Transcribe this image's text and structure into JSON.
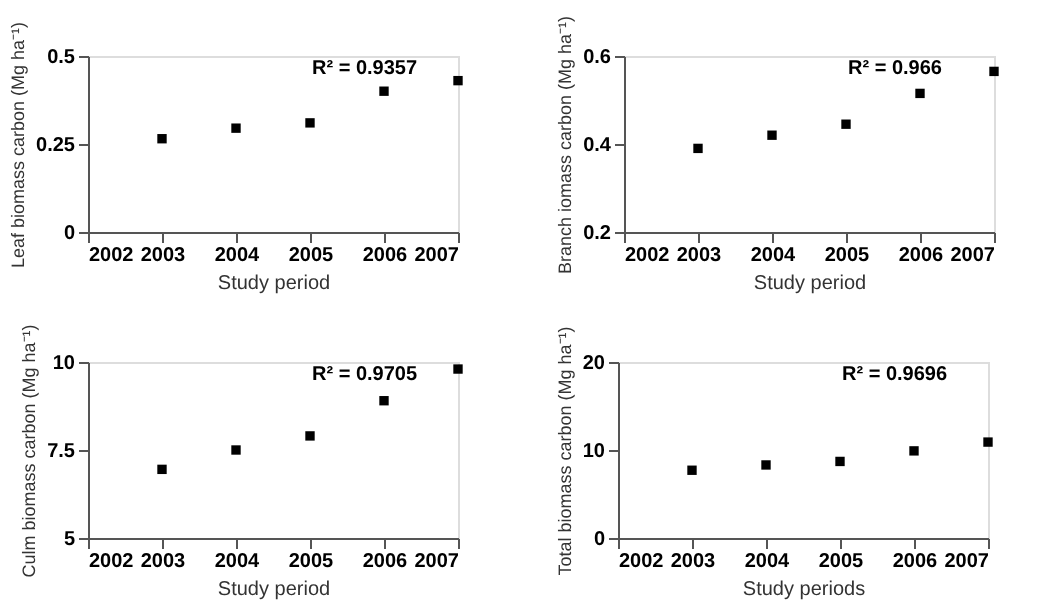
{
  "chart_data": [
    {
      "type": "scatter",
      "xlabel": "Study period",
      "ylabel": "Leaf biomass carbon (Mg ha⁻¹)",
      "annotations": [
        "R² = 0.9357"
      ],
      "x": [
        2003,
        2004,
        2005,
        2006,
        2007
      ],
      "series": [
        {
          "color": "#000000",
          "values": [
            0.265,
            0.295,
            0.31,
            0.4,
            0.43
          ]
        }
      ],
      "xlim": [
        2002,
        2007
      ],
      "xticks": [
        2002,
        2003,
        2004,
        2005,
        2006,
        2007
      ],
      "ylim": [
        0,
        0.5
      ],
      "yticks": [
        0,
        0.25,
        0.5
      ],
      "marker": "square",
      "grid": false
    },
    {
      "type": "scatter",
      "xlabel": "Study period",
      "ylabel": "Branch iomass carbon (Mg ha⁻¹)",
      "annotations": [
        "R² = 0.966"
      ],
      "x": [
        2003,
        2004,
        2005,
        2006,
        2007
      ],
      "series": [
        {
          "color": "#000000",
          "values": [
            0.39,
            0.42,
            0.445,
            0.515,
            0.565
          ]
        }
      ],
      "xlim": [
        2002,
        2007
      ],
      "xticks": [
        2002,
        2003,
        2004,
        2005,
        2006,
        2007
      ],
      "ylim": [
        0.2,
        0.6
      ],
      "yticks": [
        0.2,
        0.4,
        0.6
      ],
      "marker": "square",
      "grid": false
    },
    {
      "type": "scatter",
      "xlabel": "Study period",
      "ylabel": "Culm biomass carbon (Mg ha⁻¹)",
      "annotations": [
        "R² = 0.9705"
      ],
      "x": [
        2003,
        2004,
        2005,
        2006,
        2007
      ],
      "series": [
        {
          "color": "#000000",
          "values": [
            6.95,
            7.5,
            7.9,
            8.9,
            9.8
          ]
        }
      ],
      "xlim": [
        2002,
        2007
      ],
      "xticks": [
        2002,
        2003,
        2004,
        2005,
        2006,
        2007
      ],
      "ylim": [
        5,
        10
      ],
      "yticks": [
        5,
        7.5,
        10
      ],
      "marker": "square",
      "grid": false
    },
    {
      "type": "scatter",
      "xlabel": "Study periods",
      "ylabel": "Total biomass carbon (Mg ha⁻¹)",
      "annotations": [
        "R² = 0.9696"
      ],
      "x": [
        2003,
        2004,
        2005,
        2006,
        2007
      ],
      "series": [
        {
          "color": "#000000",
          "values": [
            7.7,
            8.3,
            8.7,
            9.9,
            10.9
          ]
        }
      ],
      "xlim": [
        2002,
        2007
      ],
      "xticks": [
        2002,
        2003,
        2004,
        2005,
        2006,
        2007
      ],
      "ylim": [
        0,
        20
      ],
      "yticks": [
        0,
        10,
        20
      ],
      "marker": "square",
      "grid": false
    }
  ]
}
